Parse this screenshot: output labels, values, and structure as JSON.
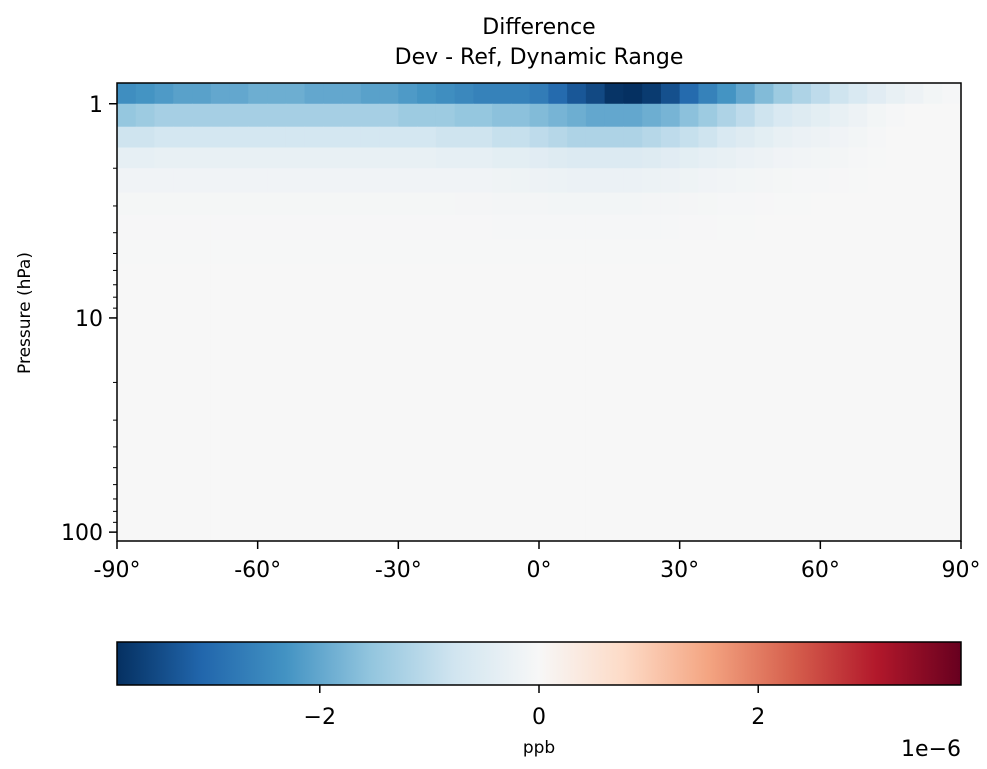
{
  "chart_data": {
    "type": "heatmap",
    "title": "Difference",
    "subtitle": "Dev - Ref, Dynamic Range",
    "ylabel": "Pressure (hPa)",
    "xlabel": "",
    "colormap": "RdBu_r",
    "x_ticks": [
      {
        "value": -90,
        "label": "-90°"
      },
      {
        "value": -60,
        "label": "-60°"
      },
      {
        "value": -30,
        "label": "-30°"
      },
      {
        "value": 0,
        "label": "0°"
      },
      {
        "value": 30,
        "label": "30°"
      },
      {
        "value": 60,
        "label": "60°"
      },
      {
        "value": 90,
        "label": "90°"
      }
    ],
    "y_ticks": [
      {
        "value": 1,
        "label": "1"
      },
      {
        "value": 10,
        "label": "10"
      },
      {
        "value": 100,
        "label": "100"
      }
    ],
    "xlim": [
      -90,
      90
    ],
    "ylim": [
      110,
      0.8
    ],
    "y_scale": "log",
    "latitudes": [
      -88,
      -84,
      -80,
      -76,
      -72,
      -68,
      -64,
      -60,
      -56,
      -52,
      -48,
      -44,
      -40,
      -36,
      -32,
      -28,
      -24,
      -20,
      -16,
      -12,
      -8,
      -4,
      0,
      4,
      8,
      12,
      16,
      20,
      24,
      28,
      32,
      36,
      40,
      44,
      48,
      52,
      56,
      60,
      64,
      68,
      72,
      76,
      80,
      84,
      88
    ],
    "level_edges": [
      0.8,
      1.0,
      1.28,
      1.6,
      2.0,
      2.6,
      3.3,
      4.3,
      5.6,
      7.3,
      9.5,
      12.5,
      16.5,
      22,
      30,
      40,
      55,
      75,
      110
    ],
    "values_e6": [
      [
        -2.4,
        -2.3,
        -2.2,
        -2.1,
        -2.1,
        -2.0,
        -2.0,
        -1.9,
        -1.9,
        -1.9,
        -2.0,
        -2.0,
        -2.0,
        -2.1,
        -2.1,
        -2.2,
        -2.3,
        -2.4,
        -2.5,
        -2.6,
        -2.6,
        -2.6,
        -2.7,
        -3.0,
        -3.3,
        -3.5,
        -3.8,
        -3.9,
        -3.7,
        -3.4,
        -3.0,
        -2.6,
        -2.3,
        -2.0,
        -1.7,
        -1.4,
        -1.2,
        -1.0,
        -0.8,
        -0.6,
        -0.45,
        -0.3,
        -0.2,
        -0.1,
        -0.05
      ],
      [
        -1.5,
        -1.4,
        -1.3,
        -1.3,
        -1.3,
        -1.3,
        -1.3,
        -1.3,
        -1.3,
        -1.3,
        -1.3,
        -1.3,
        -1.3,
        -1.3,
        -1.3,
        -1.4,
        -1.4,
        -1.4,
        -1.5,
        -1.5,
        -1.6,
        -1.6,
        -1.7,
        -1.8,
        -1.9,
        -2.0,
        -2.0,
        -2.0,
        -1.9,
        -1.8,
        -1.6,
        -1.4,
        -1.2,
        -1.0,
        -0.8,
        -0.6,
        -0.5,
        -0.4,
        -0.3,
        -0.2,
        -0.1,
        -0.05,
        0.0,
        0.0,
        0.0
      ],
      [
        -0.8,
        -0.8,
        -0.7,
        -0.7,
        -0.7,
        -0.7,
        -0.7,
        -0.7,
        -0.7,
        -0.7,
        -0.7,
        -0.7,
        -0.7,
        -0.7,
        -0.7,
        -0.7,
        -0.7,
        -0.8,
        -0.8,
        -0.8,
        -0.9,
        -0.9,
        -1.0,
        -1.1,
        -1.2,
        -1.2,
        -1.2,
        -1.2,
        -1.1,
        -1.0,
        -0.9,
        -0.8,
        -0.6,
        -0.5,
        -0.4,
        -0.3,
        -0.25,
        -0.2,
        -0.15,
        -0.1,
        -0.05,
        0.0,
        0.0,
        0.0,
        0.0
      ],
      [
        -0.35,
        -0.35,
        -0.3,
        -0.3,
        -0.3,
        -0.3,
        -0.3,
        -0.3,
        -0.3,
        -0.3,
        -0.3,
        -0.3,
        -0.3,
        -0.3,
        -0.3,
        -0.3,
        -0.3,
        -0.35,
        -0.35,
        -0.35,
        -0.4,
        -0.4,
        -0.45,
        -0.5,
        -0.55,
        -0.55,
        -0.55,
        -0.55,
        -0.5,
        -0.45,
        -0.4,
        -0.35,
        -0.3,
        -0.25,
        -0.2,
        -0.15,
        -0.12,
        -0.1,
        -0.08,
        -0.05,
        -0.02,
        0.0,
        0.0,
        0.0,
        0.0
      ],
      [
        -0.15,
        -0.15,
        -0.15,
        -0.15,
        -0.15,
        -0.15,
        -0.15,
        -0.15,
        -0.15,
        -0.15,
        -0.15,
        -0.15,
        -0.15,
        -0.15,
        -0.15,
        -0.15,
        -0.15,
        -0.15,
        -0.15,
        -0.15,
        -0.17,
        -0.18,
        -0.2,
        -0.22,
        -0.24,
        -0.25,
        -0.25,
        -0.25,
        -0.22,
        -0.2,
        -0.18,
        -0.15,
        -0.12,
        -0.1,
        -0.08,
        -0.06,
        -0.05,
        -0.04,
        -0.03,
        -0.02,
        0.0,
        0.0,
        0.0,
        0.0,
        0.0
      ],
      [
        -0.06,
        -0.06,
        -0.06,
        -0.06,
        -0.06,
        -0.06,
        -0.06,
        -0.06,
        -0.06,
        -0.06,
        -0.06,
        -0.06,
        -0.06,
        -0.06,
        -0.06,
        -0.06,
        -0.06,
        -0.06,
        -0.07,
        -0.07,
        -0.08,
        -0.08,
        -0.09,
        -0.1,
        -0.1,
        -0.1,
        -0.1,
        -0.1,
        -0.09,
        -0.08,
        -0.07,
        -0.06,
        -0.05,
        -0.04,
        -0.03,
        -0.02,
        -0.02,
        -0.01,
        -0.01,
        0.0,
        0.0,
        0.0,
        0.0,
        0.0,
        0.0
      ],
      [
        -0.03,
        -0.03,
        -0.03,
        -0.03,
        -0.03,
        -0.03,
        -0.03,
        -0.03,
        -0.03,
        -0.03,
        -0.03,
        -0.03,
        -0.03,
        -0.03,
        -0.03,
        -0.03,
        -0.03,
        -0.03,
        -0.03,
        -0.03,
        -0.04,
        -0.04,
        -0.04,
        -0.05,
        -0.05,
        -0.05,
        -0.05,
        -0.05,
        -0.04,
        -0.04,
        -0.03,
        -0.03,
        -0.02,
        -0.02,
        -0.01,
        -0.01,
        -0.01,
        0.0,
        0.0,
        0.0,
        0.0,
        0.0,
        0.0,
        0.0,
        0.0
      ],
      [
        -0.02,
        -0.02,
        -0.02,
        -0.02,
        -0.02,
        -0.02,
        -0.02,
        -0.02,
        -0.02,
        -0.02,
        -0.02,
        -0.02,
        -0.02,
        -0.02,
        -0.02,
        -0.02,
        -0.02,
        -0.02,
        -0.02,
        -0.02,
        -0.02,
        -0.02,
        -0.02,
        -0.02,
        -0.02,
        -0.02,
        -0.02,
        -0.02,
        -0.02,
        -0.02,
        -0.01,
        -0.01,
        -0.01,
        -0.01,
        -0.01,
        0.0,
        0.0,
        0.0,
        0.0,
        0.0,
        0.0,
        0.0,
        0.0,
        0.0,
        0.0
      ],
      [
        -0.01,
        -0.01,
        -0.01,
        -0.01,
        -0.01,
        -0.01,
        -0.01,
        -0.01,
        -0.01,
        -0.01,
        -0.01,
        -0.01,
        -0.01,
        -0.01,
        -0.01,
        -0.01,
        -0.01,
        -0.01,
        -0.01,
        -0.01,
        -0.01,
        -0.01,
        -0.01,
        -0.01,
        -0.01,
        -0.01,
        -0.01,
        -0.01,
        -0.01,
        -0.01,
        -0.01,
        -0.01,
        -0.01,
        -0.01,
        -0.01,
        -0.01,
        -0.01,
        -0.01,
        0.0,
        0.0,
        0.0,
        0.0,
        0.0,
        0.0,
        0.0
      ],
      [
        -0.01,
        -0.01,
        -0.01,
        -0.01,
        -0.01,
        -0.01,
        -0.01,
        -0.01,
        -0.01,
        -0.01,
        -0.01,
        -0.01,
        -0.01,
        -0.01,
        -0.01,
        -0.01,
        -0.01,
        -0.01,
        -0.01,
        -0.01,
        -0.01,
        -0.01,
        -0.01,
        -0.01,
        -0.01,
        -0.01,
        -0.01,
        -0.01,
        -0.01,
        -0.01,
        -0.01,
        -0.01,
        -0.01,
        -0.01,
        -0.01,
        -0.01,
        -0.01,
        -0.01,
        -0.01,
        -0.01,
        -0.01,
        -0.01,
        -0.01,
        -0.01,
        -0.01
      ],
      [
        -0.01,
        -0.01,
        -0.01,
        -0.01,
        -0.01,
        -0.01,
        -0.01,
        -0.01,
        -0.01,
        -0.01,
        -0.01,
        -0.01,
        -0.01,
        -0.01,
        -0.01,
        -0.01,
        -0.01,
        -0.01,
        -0.01,
        -0.01,
        -0.01,
        -0.01,
        -0.01,
        -0.01,
        -0.01,
        -0.01,
        -0.01,
        -0.01,
        -0.01,
        -0.01,
        -0.01,
        -0.01,
        -0.01,
        -0.01,
        -0.01,
        -0.01,
        -0.01,
        -0.01,
        -0.01,
        -0.01,
        -0.01,
        -0.01,
        -0.01,
        -0.01,
        -0.01
      ],
      [
        0.0,
        0.0,
        0.0,
        0.0,
        0.0,
        0.0,
        0.0,
        0.0,
        0.0,
        0.0,
        0.0,
        0.0,
        0.0,
        0.0,
        0.0,
        0.0,
        0.0,
        0.0,
        0.0,
        0.0,
        0.0,
        0.0,
        0.0,
        0.0,
        0.0,
        0.0,
        0.0,
        0.0,
        0.0,
        0.0,
        0.0,
        0.0,
        0.0,
        0.0,
        0.0,
        0.0,
        0.0,
        0.0,
        0.0,
        0.0,
        0.0,
        0.0,
        0.0,
        0.0,
        0.0
      ],
      [
        0.0,
        0.0,
        0.0,
        0.0,
        0.0,
        0.0,
        0.0,
        0.0,
        0.0,
        0.0,
        0.0,
        0.0,
        0.0,
        0.0,
        0.0,
        0.0,
        0.0,
        0.0,
        0.0,
        0.0,
        0.0,
        0.0,
        0.0,
        0.0,
        0.0,
        0.0,
        0.0,
        0.0,
        0.0,
        0.0,
        0.0,
        0.0,
        0.0,
        0.0,
        0.0,
        0.0,
        0.0,
        0.0,
        0.0,
        0.0,
        0.0,
        0.0,
        0.0,
        0.0,
        0.0
      ],
      [
        0.0,
        0.0,
        0.0,
        0.0,
        0.0,
        0.0,
        0.0,
        0.0,
        0.0,
        0.0,
        0.0,
        0.0,
        0.0,
        0.0,
        0.0,
        0.0,
        0.0,
        0.0,
        0.0,
        0.0,
        0.0,
        0.0,
        0.0,
        0.0,
        0.0,
        0.0,
        0.0,
        0.0,
        0.0,
        0.0,
        0.0,
        0.0,
        0.0,
        0.0,
        0.0,
        0.0,
        0.0,
        0.0,
        0.0,
        0.0,
        0.0,
        0.0,
        0.0,
        0.0,
        0.0
      ],
      [
        0.0,
        0.0,
        0.0,
        0.0,
        0.0,
        0.0,
        0.0,
        0.0,
        0.0,
        0.0,
        0.0,
        0.0,
        0.0,
        0.0,
        0.0,
        0.0,
        0.0,
        0.0,
        0.0,
        0.0,
        0.0,
        0.0,
        0.0,
        0.0,
        0.0,
        0.0,
        0.0,
        0.0,
        0.0,
        0.0,
        0.0,
        0.0,
        0.0,
        0.0,
        0.0,
        0.0,
        0.0,
        0.0,
        0.0,
        0.0,
        0.0,
        0.0,
        0.0,
        0.0,
        0.0
      ],
      [
        0.0,
        0.0,
        0.0,
        0.0,
        0.0,
        0.0,
        0.0,
        0.0,
        0.0,
        0.0,
        0.0,
        0.0,
        0.0,
        0.0,
        0.0,
        0.0,
        0.0,
        0.0,
        0.0,
        0.0,
        0.0,
        0.0,
        0.0,
        0.0,
        0.0,
        0.0,
        0.0,
        0.0,
        0.0,
        0.0,
        0.0,
        0.0,
        0.0,
        0.0,
        0.0,
        0.0,
        0.0,
        0.0,
        0.0,
        0.0,
        0.0,
        0.0,
        0.0,
        0.0,
        0.0
      ],
      [
        0.0,
        0.0,
        0.0,
        0.0,
        0.0,
        0.0,
        0.0,
        0.0,
        0.0,
        0.0,
        0.0,
        0.0,
        0.0,
        0.0,
        0.0,
        0.0,
        0.0,
        0.0,
        0.0,
        0.0,
        0.0,
        0.0,
        0.0,
        0.0,
        0.0,
        0.0,
        0.0,
        0.0,
        0.0,
        0.0,
        0.0,
        0.0,
        0.0,
        0.0,
        0.0,
        0.0,
        0.0,
        0.0,
        0.0,
        0.0,
        0.0,
        0.0,
        0.0,
        0.0,
        0.0
      ],
      [
        0.0,
        0.0,
        0.0,
        0.0,
        0.0,
        0.0,
        0.0,
        0.0,
        0.0,
        0.0,
        0.0,
        0.0,
        0.0,
        0.0,
        0.0,
        0.0,
        0.0,
        0.0,
        0.0,
        0.0,
        0.0,
        0.0,
        0.0,
        0.0,
        0.0,
        0.0,
        0.0,
        0.0,
        0.0,
        0.0,
        0.0,
        0.0,
        0.0,
        0.0,
        0.0,
        0.0,
        0.0,
        0.0,
        0.0,
        0.0,
        0.0,
        0.0,
        0.0,
        0.0,
        0.0
      ]
    ],
    "colorbar": {
      "label": "ppb",
      "range": [
        -3.85,
        3.85
      ],
      "ticks": [
        {
          "value": -2,
          "label": "−2"
        },
        {
          "value": 0,
          "label": "0"
        },
        {
          "value": 2,
          "label": "2"
        }
      ],
      "offset_label": "1e−6"
    },
    "colormap_stops": [
      "#053061",
      "#2166ac",
      "#4393c3",
      "#92c5de",
      "#d1e5f0",
      "#f7f7f7",
      "#fddbc7",
      "#f4a582",
      "#d6604d",
      "#b2182b",
      "#67001f"
    ]
  }
}
